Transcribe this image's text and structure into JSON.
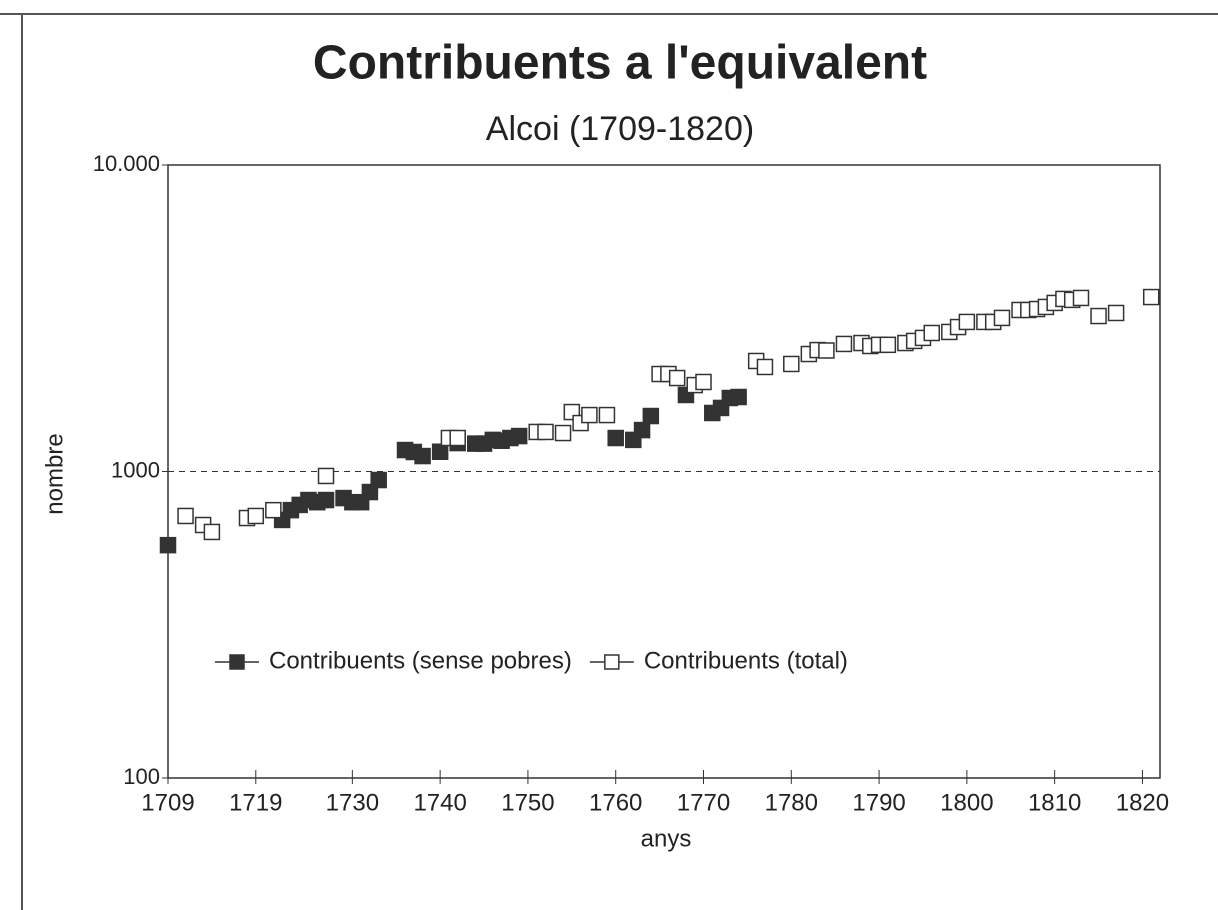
{
  "chart_data": {
    "type": "scatter",
    "title": "Contribuents a l'equivalent",
    "subtitle": "Alcoi (1709-1820)",
    "xlabel": "anys",
    "ylabel": "nombre",
    "xlim": [
      1709,
      1822
    ],
    "xticks": [
      1709,
      1719,
      1730,
      1740,
      1750,
      1760,
      1770,
      1780,
      1790,
      1800,
      1810,
      1820
    ],
    "ylim": [
      100,
      10000
    ],
    "log_y": true,
    "yticks": [
      100,
      1000,
      {
        "value": 10000,
        "label": "10.000"
      }
    ],
    "grid": true,
    "legend": "center",
    "series": [
      {
        "name": "Contribuents (sense pobres)",
        "color": "#333333",
        "filled": true,
        "x": [
          1709,
          1722,
          1723,
          1724,
          1725,
          1726,
          1727,
          1729,
          1730,
          1731,
          1732,
          1733,
          1736,
          1737,
          1738,
          1740,
          1742,
          1744,
          1745,
          1746,
          1747,
          1748,
          1749,
          1760,
          1762,
          1763,
          1764,
          1768,
          1771,
          1772,
          1773,
          1774
        ],
        "values": [
          575,
          695,
          748,
          778,
          807,
          794,
          807,
          819,
          794,
          794,
          857,
          938,
          1175,
          1158,
          1123,
          1160,
          1238,
          1233,
          1233,
          1268,
          1260,
          1286,
          1305,
          1286,
          1268,
          1365,
          1517,
          1777,
          1552,
          1612,
          1737,
          1750
        ]
      },
      {
        "name": "Contribuents (total)",
        "color": "#333333",
        "filled": false,
        "x": [
          1711,
          1713,
          1714,
          1718,
          1719,
          1721,
          1727,
          1741,
          1742,
          1751,
          1752,
          1754,
          1755,
          1756,
          1757,
          1759,
          1765,
          1766,
          1767,
          1769,
          1770,
          1776,
          1777,
          1780,
          1782,
          1783,
          1784,
          1786,
          1788,
          1789,
          1790,
          1791,
          1793,
          1794,
          1795,
          1796,
          1798,
          1799,
          1800,
          1802,
          1803,
          1804,
          1806,
          1807,
          1808,
          1809,
          1810,
          1811,
          1812,
          1813,
          1815,
          1817,
          1821
        ],
        "values": [
          716,
          669,
          635,
          705,
          716,
          748,
          967,
          1286,
          1286,
          1346,
          1346,
          1335,
          1563,
          1439,
          1528,
          1528,
          2080,
          2080,
          2018,
          1914,
          1959,
          2294,
          2193,
          2243,
          2417,
          2490,
          2482,
          2607,
          2625,
          2567,
          2590,
          2590,
          2625,
          2667,
          2728,
          2831,
          2853,
          2960,
          3076,
          3076,
          3076,
          3170,
          3365,
          3365,
          3389,
          3443,
          3548,
          3656,
          3630,
          3683,
          3215,
          3290,
          3708
        ]
      }
    ]
  }
}
